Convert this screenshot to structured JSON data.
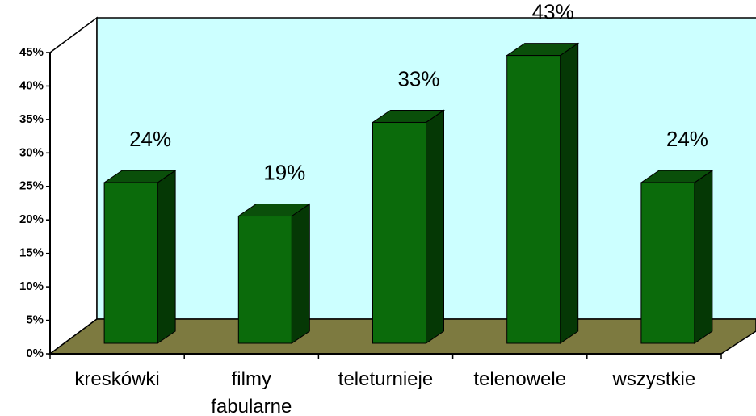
{
  "chart_data": {
    "type": "bar3d",
    "categories": [
      "kreskówki",
      "filmy fabularne",
      "teleturnieje",
      "telenowele",
      "wszystkie"
    ],
    "values": [
      24,
      19,
      33,
      43,
      24
    ],
    "value_labels": [
      "24%",
      "19%",
      "33%",
      "43%",
      "24%"
    ],
    "color": "#0b6b0b",
    "ylim": [
      0,
      45
    ],
    "yticks": [
      {
        "value": 0,
        "label": "0%"
      },
      {
        "value": 5,
        "label": "5%"
      },
      {
        "value": 10,
        "label": "10%"
      },
      {
        "value": 15,
        "label": "15%"
      },
      {
        "value": 20,
        "label": "20%"
      },
      {
        "value": 25,
        "label": "25%"
      },
      {
        "value": 30,
        "label": "30%"
      },
      {
        "value": 35,
        "label": "35%"
      },
      {
        "value": 40,
        "label": "40%"
      },
      {
        "value": 45,
        "label": "45%"
      }
    ],
    "grid": false
  }
}
